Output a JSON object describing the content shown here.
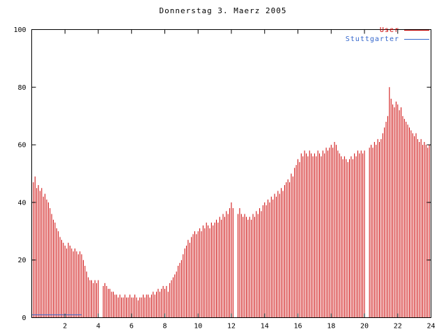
{
  "chart_data": {
    "type": "bar",
    "title": "Donnerstag 3. Maerz 2005",
    "xlabel": "",
    "ylabel": "",
    "xlim": [
      0,
      24
    ],
    "ylim": [
      0,
      100
    ],
    "x_ticks": [
      2,
      4,
      6,
      8,
      10,
      12,
      14,
      16,
      18,
      20,
      22,
      24
    ],
    "y_ticks": [
      0,
      20,
      40,
      60,
      80,
      100
    ],
    "axis_color": "#000000",
    "background_color": "#ffffff",
    "legend_position": "top-right",
    "grid": false,
    "series": [
      {
        "name": "User",
        "color": "#cc0000",
        "style": "impulses",
        "x_start": 0,
        "x_step": 0.1,
        "values": [
          50,
          47,
          49,
          45,
          46,
          44,
          45,
          42,
          43,
          41,
          40,
          38,
          36,
          34,
          33,
          31,
          30,
          28,
          27,
          26,
          25,
          24,
          26,
          25,
          24,
          23,
          24,
          23,
          22,
          23,
          22,
          20,
          18,
          16,
          14,
          13,
          13,
          12,
          13,
          12,
          13,
          0,
          0,
          11,
          12,
          11,
          10,
          10,
          9,
          9,
          8,
          8,
          7,
          8,
          7,
          7,
          8,
          7,
          7,
          8,
          7,
          7,
          8,
          7,
          6,
          7,
          7,
          8,
          7,
          8,
          8,
          7,
          8,
          9,
          8,
          9,
          10,
          9,
          10,
          11,
          10,
          11,
          9,
          12,
          13,
          14,
          15,
          16,
          18,
          19,
          20,
          22,
          24,
          25,
          27,
          26,
          28,
          29,
          30,
          29,
          30,
          31,
          30,
          32,
          31,
          33,
          32,
          31,
          33,
          32,
          33,
          34,
          33,
          35,
          34,
          36,
          35,
          37,
          36,
          38,
          40,
          38,
          0,
          0,
          36,
          38,
          36,
          35,
          36,
          35,
          34,
          35,
          34,
          36,
          35,
          37,
          36,
          38,
          37,
          39,
          40,
          39,
          41,
          40,
          42,
          41,
          43,
          42,
          44,
          43,
          45,
          44,
          46,
          47,
          48,
          47,
          50,
          49,
          52,
          53,
          55,
          54,
          57,
          56,
          58,
          57,
          56,
          58,
          57,
          56,
          57,
          56,
          58,
          57,
          56,
          58,
          57,
          59,
          58,
          59,
          60,
          59,
          61,
          60,
          58,
          57,
          56,
          55,
          56,
          55,
          54,
          55,
          56,
          55,
          57,
          56,
          58,
          57,
          58,
          57,
          58,
          0,
          0,
          59,
          60,
          59,
          61,
          60,
          62,
          61,
          62,
          64,
          66,
          68,
          70,
          80,
          76,
          74,
          73,
          75,
          74,
          72,
          73,
          70,
          69,
          68,
          67,
          66,
          65,
          64,
          63,
          64,
          62,
          61,
          62,
          60,
          61,
          60,
          59,
          60,
          60
        ]
      },
      {
        "name": "Stuttgarter",
        "color": "#3366cc",
        "style": "line",
        "points": [
          [
            0,
            1
          ],
          [
            3,
            1
          ]
        ]
      }
    ]
  }
}
